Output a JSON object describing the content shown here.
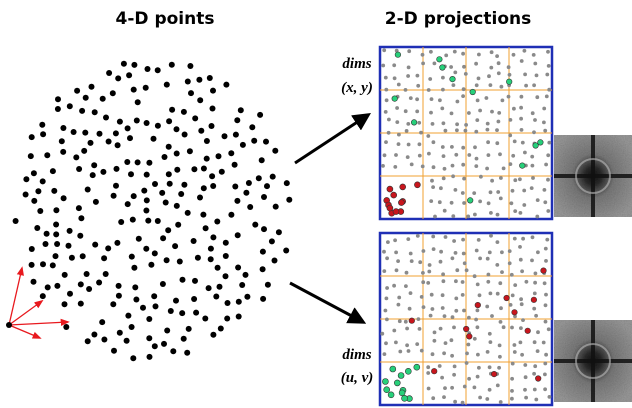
{
  "titles": {
    "left": "4-D points",
    "right": "2-D projections"
  },
  "projections": [
    {
      "dims_word": "dims",
      "dims_pair": "(x, y)"
    },
    {
      "dims_word": "dims",
      "dims_pair": "(u, v)"
    }
  ],
  "colors": {
    "point": "#000000",
    "gray_sample": "#8a8a8a",
    "green_sample": "#27d07a",
    "red_sample": "#c8161d",
    "frame": "#1f2fb5",
    "grid": "#f0a030",
    "axis_arrow": "#e8191e"
  },
  "icons": {
    "axes": "red-4d-axes-icon",
    "arrows": "black-projection-arrows",
    "spectrum": "fourier-power-spectrum-thumbnail"
  }
}
